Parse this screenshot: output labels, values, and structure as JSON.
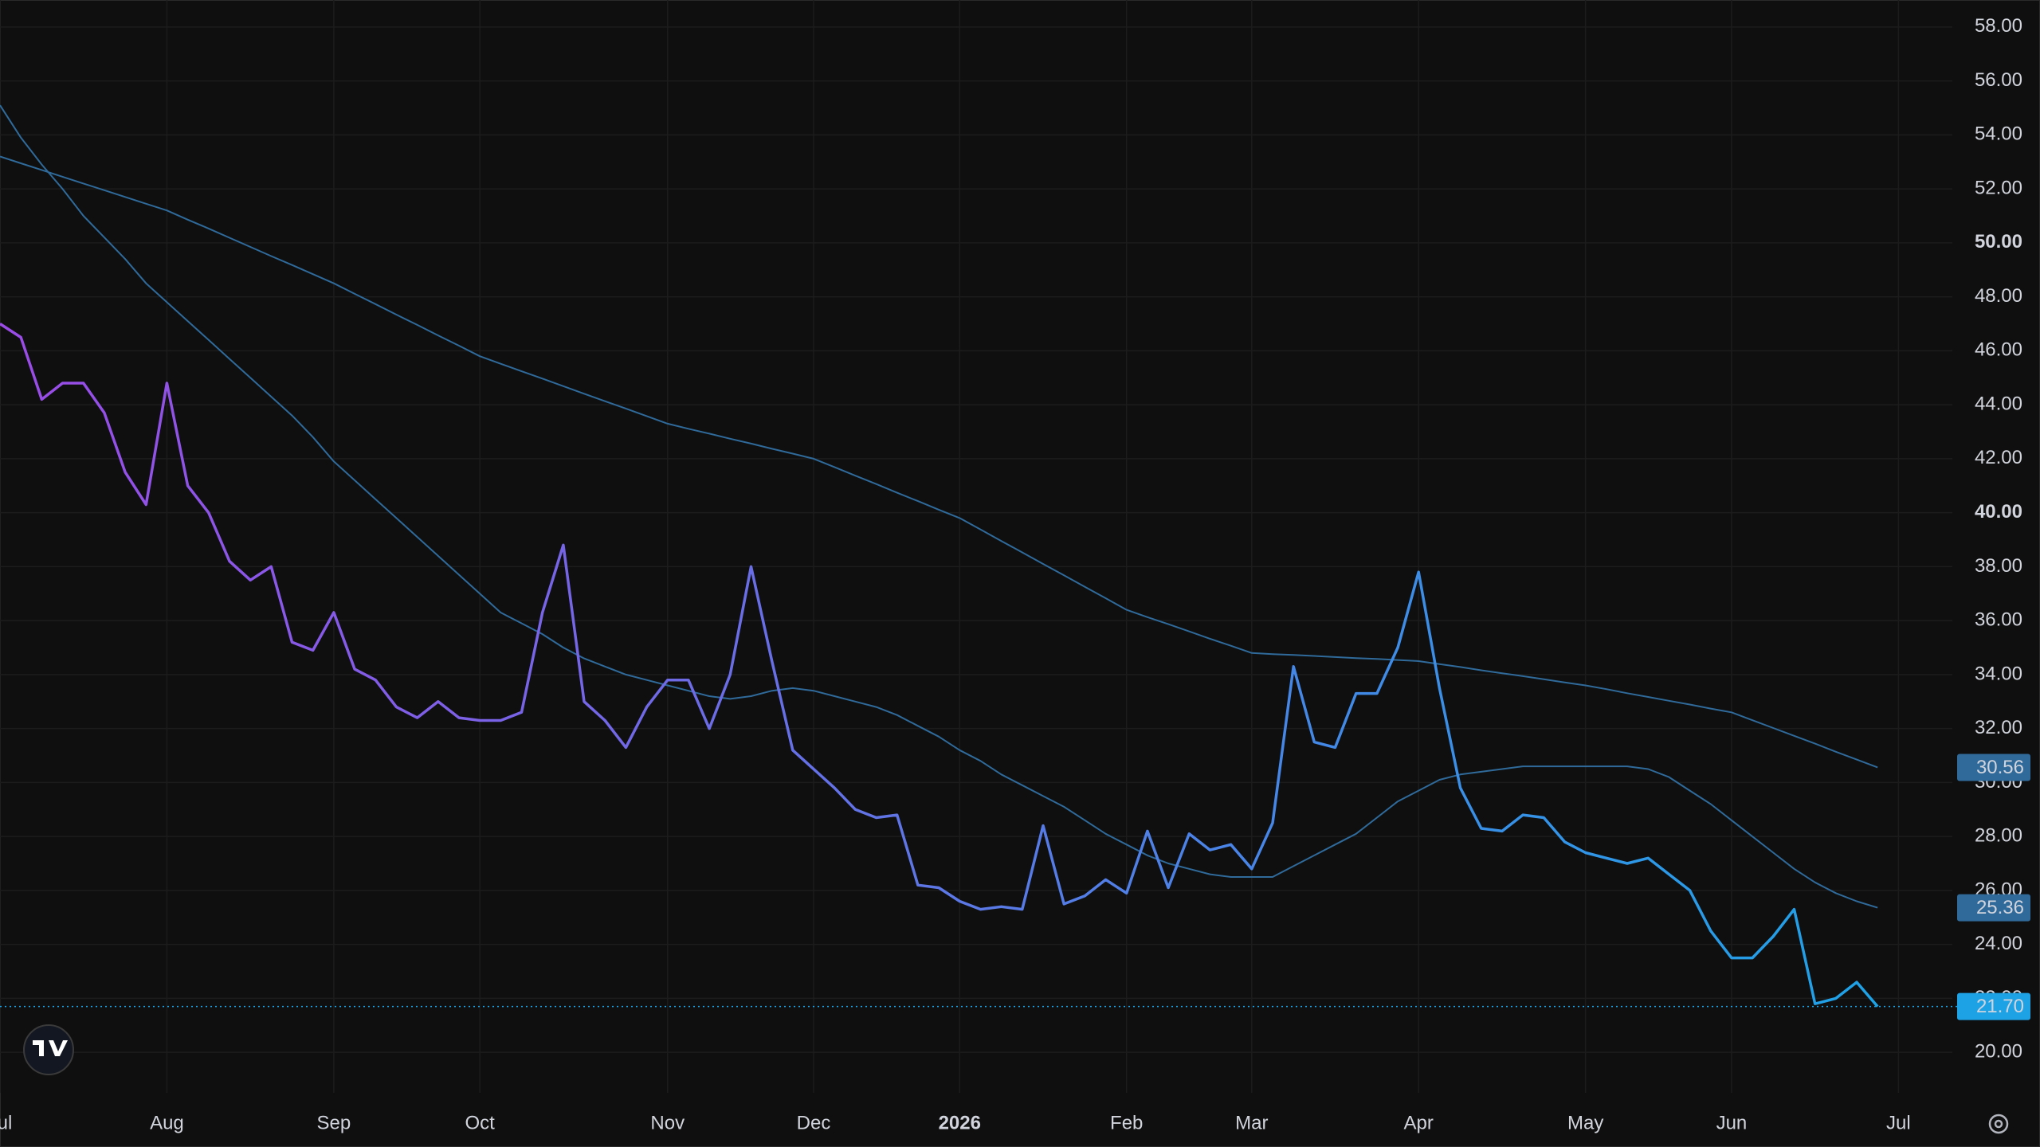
{
  "chart_data": {
    "type": "line",
    "categories": [
      "Jul",
      null,
      null,
      null,
      null,
      null,
      null,
      null,
      "Aug",
      null,
      null,
      null,
      null,
      null,
      null,
      null,
      "Sep",
      null,
      null,
      null,
      null,
      null,
      null,
      "Oct",
      null,
      null,
      null,
      null,
      null,
      null,
      null,
      null,
      "Nov",
      null,
      null,
      null,
      null,
      null,
      null,
      "Dec",
      null,
      null,
      null,
      null,
      null,
      null,
      "2026",
      null,
      null,
      null,
      null,
      null,
      null,
      null,
      "Feb",
      null,
      null,
      null,
      null,
      null,
      "Mar",
      null,
      null,
      null,
      null,
      null,
      null,
      null,
      "Apr",
      null,
      null,
      null,
      null,
      null,
      null,
      null,
      "May",
      null,
      null,
      null,
      null,
      null,
      null,
      "Jun",
      null,
      null,
      null,
      null,
      null,
      null,
      null,
      "Jul"
    ],
    "bold_categories": [
      "2026"
    ],
    "series": [
      {
        "color": "#1ea2e6",
        "gradient_from": "#9b4be6",
        "last_value_label": "21.70",
        "price_line": true,
        "values": [
          47.0,
          46.5,
          44.2,
          44.8,
          44.8,
          43.7,
          41.5,
          40.3,
          44.8,
          41.0,
          40.0,
          38.2,
          37.5,
          38.0,
          35.2,
          34.9,
          36.3,
          34.2,
          33.8,
          32.8,
          32.4,
          33.0,
          32.4,
          32.3,
          32.3,
          32.6,
          36.3,
          38.8,
          33.0,
          32.3,
          31.3,
          32.8,
          33.8,
          33.8,
          32.0,
          34.0,
          38.0,
          34.5,
          31.2,
          30.5,
          29.8,
          29.0,
          28.7,
          28.8,
          26.2,
          26.1,
          25.6,
          25.3,
          25.4,
          25.3,
          28.4,
          25.5,
          25.8,
          26.4,
          25.9,
          28.2,
          26.1,
          28.1,
          27.5,
          27.7,
          26.8,
          28.5,
          34.3,
          31.5,
          31.3,
          33.3,
          33.3,
          35.0,
          37.8,
          33.5,
          29.8,
          28.3,
          28.2,
          28.8,
          28.7,
          27.8,
          27.4,
          27.2,
          27.0,
          27.2,
          26.6,
          26.0,
          24.5,
          23.5,
          23.5,
          24.3,
          25.3,
          21.8,
          22.0,
          22.6,
          21.7,
          null
        ]
      },
      {
        "color": "#2f6a9a",
        "last_value_label": "25.36",
        "values": [
          55.1,
          53.9,
          52.9,
          52.0,
          51.0,
          50.2,
          49.4,
          48.5,
          47.8,
          47.1,
          46.4,
          45.7,
          45.0,
          44.3,
          43.6,
          42.8,
          41.9,
          41.2,
          40.5,
          39.8,
          39.1,
          38.4,
          37.7,
          37.0,
          36.3,
          35.9,
          35.5,
          35.0,
          34.6,
          34.3,
          34.0,
          33.8,
          33.6,
          33.4,
          33.2,
          33.1,
          33.2,
          33.4,
          33.5,
          33.4,
          33.2,
          33.0,
          32.8,
          32.5,
          32.1,
          31.7,
          31.2,
          30.8,
          30.3,
          29.9,
          29.5,
          29.1,
          28.6,
          28.1,
          27.7,
          27.3,
          27.0,
          26.8,
          26.6,
          26.5,
          26.5,
          26.5,
          26.9,
          27.3,
          27.7,
          28.1,
          28.7,
          29.3,
          29.7,
          30.1,
          30.3,
          30.4,
          30.5,
          30.6,
          30.6,
          30.6,
          30.6,
          30.6,
          30.6,
          30.5,
          30.2,
          29.7,
          29.2,
          28.6,
          28.0,
          27.4,
          26.8,
          26.3,
          25.9,
          25.6,
          25.36,
          null
        ]
      },
      {
        "color": "#2f6a9a",
        "last_value_label": "30.56",
        "values": [
          53.2,
          52.95,
          52.7,
          52.45,
          52.2,
          51.95,
          51.7,
          51.45,
          51.2,
          50.86,
          50.53,
          50.19,
          49.85,
          49.51,
          49.18,
          48.84,
          48.5,
          48.11,
          47.73,
          47.34,
          46.96,
          46.57,
          46.19,
          45.8,
          45.52,
          45.24,
          44.97,
          44.69,
          44.41,
          44.13,
          43.86,
          43.58,
          43.3,
          43.11,
          42.93,
          42.74,
          42.56,
          42.37,
          42.19,
          42.0,
          41.69,
          41.37,
          41.06,
          40.74,
          40.43,
          40.11,
          39.8,
          39.38,
          38.95,
          38.53,
          38.1,
          37.68,
          37.25,
          36.83,
          36.4,
          36.13,
          35.87,
          35.6,
          35.33,
          35.07,
          34.8,
          34.76,
          34.73,
          34.69,
          34.65,
          34.61,
          34.58,
          34.54,
          34.5,
          34.39,
          34.28,
          34.16,
          34.05,
          33.94,
          33.83,
          33.71,
          33.6,
          33.46,
          33.31,
          33.17,
          33.03,
          32.89,
          32.74,
          32.6,
          32.31,
          32.02,
          31.73,
          31.44,
          31.14,
          30.85,
          30.56,
          null
        ]
      }
    ],
    "ylim": [
      18.5,
      59
    ],
    "yticks": [
      {
        "value": 20,
        "label": "20.00"
      },
      {
        "value": 22,
        "label": "22.00"
      },
      {
        "value": 24,
        "label": "24.00"
      },
      {
        "value": 26,
        "label": "26.00"
      },
      {
        "value": 28,
        "label": "28.00"
      },
      {
        "value": 30,
        "label": "30.00"
      },
      {
        "value": 32,
        "label": "32.00"
      },
      {
        "value": 34,
        "label": "34.00"
      },
      {
        "value": 36,
        "label": "36.00"
      },
      {
        "value": 38,
        "label": "38.00"
      },
      {
        "value": 40,
        "label": "40.00"
      },
      {
        "value": 42,
        "label": "42.00"
      },
      {
        "value": 44,
        "label": "44.00"
      },
      {
        "value": 46,
        "label": "46.00"
      },
      {
        "value": 48,
        "label": "48.00"
      },
      {
        "value": 50,
        "label": "50.00"
      },
      {
        "value": 52,
        "label": "52.00"
      },
      {
        "value": 54,
        "label": "54.00"
      },
      {
        "value": 56,
        "label": "56.00"
      },
      {
        "value": 58,
        "label": "58.00"
      }
    ],
    "bold_yticks": [
      40,
      50
    ],
    "grid": true
  }
}
